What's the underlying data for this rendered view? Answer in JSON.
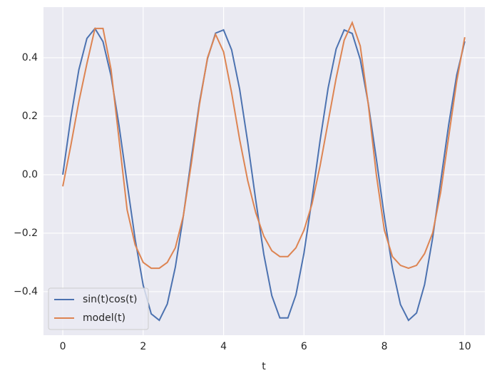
{
  "chart_data": {
    "type": "line",
    "xlabel": "t",
    "x": [
      0,
      0.2,
      0.4,
      0.6,
      0.8,
      1.0,
      1.2,
      1.4,
      1.6,
      1.8,
      2.0,
      2.2,
      2.4,
      2.6,
      2.8,
      3.0,
      3.2,
      3.4,
      3.6,
      3.8,
      4.0,
      4.2,
      4.4,
      4.6,
      4.8,
      5.0,
      5.2,
      5.4,
      5.6,
      5.8,
      6.0,
      6.2,
      6.4,
      6.6,
      6.8,
      7.0,
      7.2,
      7.4,
      7.6,
      7.8,
      8.0,
      8.2,
      8.4,
      8.6,
      8.8,
      9.0,
      9.2,
      9.4,
      9.6,
      9.8,
      10
    ],
    "series": [
      {
        "name": "sin(t)cos(t)",
        "color": "#4c72b0",
        "values": [
          0,
          0.195,
          0.359,
          0.466,
          0.5,
          0.455,
          0.338,
          0.167,
          -0.029,
          -0.221,
          -0.378,
          -0.476,
          -0.498,
          -0.442,
          -0.316,
          -0.14,
          0.058,
          0.247,
          0.397,
          0.484,
          0.495,
          0.427,
          0.292,
          0.111,
          -0.087,
          -0.272,
          -0.414,
          -0.49,
          -0.49,
          -0.411,
          -0.268,
          -0.083,
          0.116,
          0.296,
          0.43,
          0.495,
          0.483,
          0.394,
          0.243,
          0.054,
          -0.144,
          -0.319,
          -0.444,
          -0.498,
          -0.473,
          -0.376,
          -0.217,
          -0.024,
          0.171,
          0.341,
          0.456
        ]
      },
      {
        "name": "model(t)",
        "color": "#dd8452",
        "values": [
          -0.04,
          0.1,
          0.25,
          0.38,
          0.5,
          0.5,
          0.36,
          0.12,
          -0.12,
          -0.24,
          -0.3,
          -0.32,
          -0.32,
          -0.3,
          -0.25,
          -0.14,
          0.04,
          0.24,
          0.4,
          0.48,
          0.42,
          0.28,
          0.12,
          -0.02,
          -0.13,
          -0.21,
          -0.26,
          -0.28,
          -0.28,
          -0.25,
          -0.19,
          -0.1,
          0.03,
          0.18,
          0.33,
          0.46,
          0.52,
          0.44,
          0.24,
          0.0,
          -0.19,
          -0.28,
          -0.31,
          -0.32,
          -0.31,
          -0.27,
          -0.2,
          -0.06,
          0.13,
          0.32,
          0.47
        ]
      }
    ],
    "xlim": [
      -0.48,
      10.5
    ],
    "ylim": [
      -0.549,
      0.573
    ],
    "xticks": [
      0,
      2,
      4,
      6,
      8,
      10
    ],
    "yticks": [
      {
        "value": -0.4,
        "label": "−0.4"
      },
      {
        "value": -0.2,
        "label": "−0.2"
      },
      {
        "value": 0,
        "label": "0.0"
      },
      0.2,
      0.4
    ],
    "grid": true,
    "legend": "lower left"
  }
}
